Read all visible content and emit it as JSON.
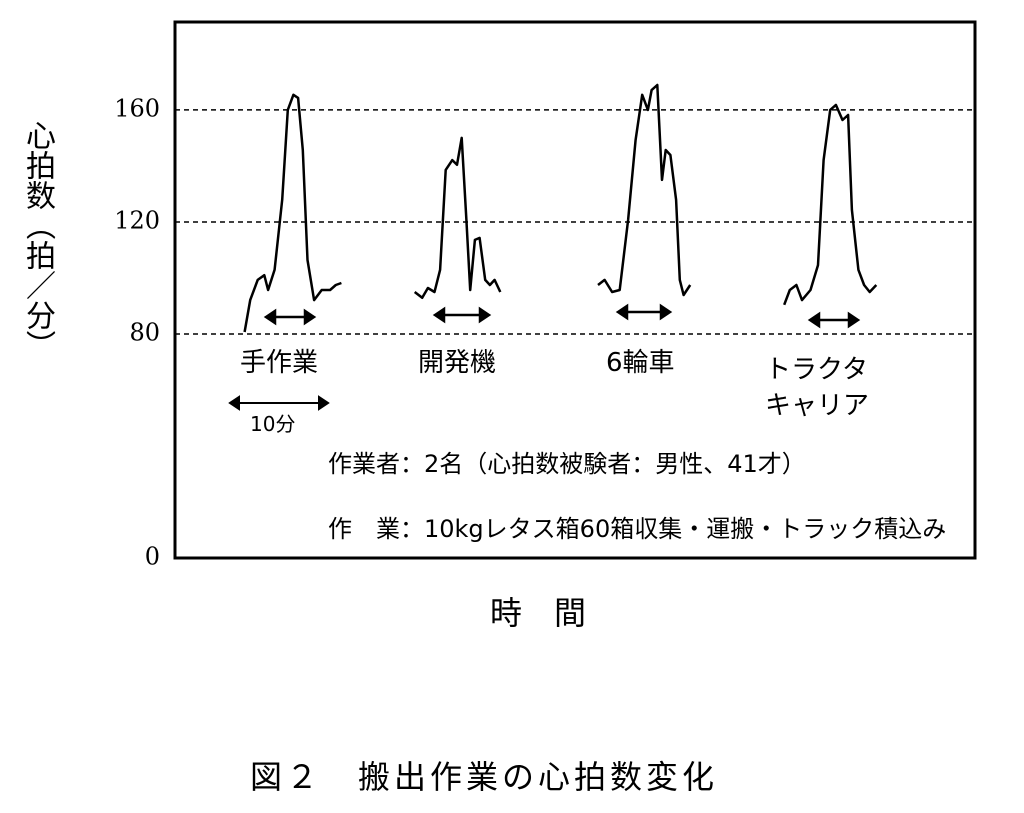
{
  "chart_data": {
    "type": "line",
    "caption": "図２　搬出作業の心拍数変化",
    "y_label": "心拍数（拍／分）",
    "x_label": "時　間",
    "ylim": [
      0,
      191.4
    ],
    "yticks": [
      0,
      80,
      120,
      160
    ],
    "xlim": [
      0,
      85.1
    ],
    "grid": true,
    "scale_bar_label": "10分",
    "annotations": [
      "作業者：2名（心拍数被験者：男性、41才）",
      "作　業：10kgレタス箱60箱収集・運搬・トラック積込み"
    ],
    "series": [
      {
        "name": "手作業",
        "color": "#000000",
        "x": [
          7.4,
          8.0,
          8.8,
          9.5,
          9.9,
          10.6,
          11.4,
          12.0,
          12.6,
          13.1,
          13.6,
          14.1,
          14.8,
          15.6,
          16.5,
          17.1,
          17.7
        ],
        "values": [
          80.7,
          92.1,
          99.3,
          101,
          95.7,
          102.9,
          127.9,
          160,
          165.4,
          164.3,
          145.7,
          106.4,
          92.1,
          95.7,
          95.7,
          97.5,
          98.2
        ]
      },
      {
        "name": "開発機",
        "color": "#000000",
        "x": [
          25.5,
          26.3,
          26.9,
          27.6,
          28.2,
          28.8,
          29.5,
          30.0,
          30.5,
          31.0,
          31.4,
          31.9,
          32.4,
          33.0,
          33.5,
          34.0,
          34.6
        ],
        "values": [
          95,
          92.9,
          96.4,
          95,
          102.9,
          138.6,
          142.1,
          140.4,
          150,
          120.7,
          95.7,
          113.6,
          114.3,
          99.3,
          97.5,
          99.3,
          95
        ]
      },
      {
        "name": "6輪車",
        "color": "#000000",
        "x": [
          45.0,
          45.7,
          46.5,
          47.3,
          48.2,
          49.0,
          49.7,
          50.3,
          50.7,
          51.3,
          51.8,
          52.2,
          52.7,
          53.3,
          53.7,
          54.1,
          54.8
        ],
        "values": [
          97.5,
          99.3,
          95,
          95.7,
          120.7,
          149.3,
          165.4,
          160,
          167.1,
          168.9,
          135,
          145.7,
          143.9,
          127.9,
          99.3,
          93.9,
          97.5
        ]
      },
      {
        "name": "トラクタ\nキャリア",
        "color": "#000000",
        "x": [
          64.8,
          65.4,
          66.1,
          66.7,
          67.6,
          68.4,
          69.0,
          69.7,
          70.3,
          71.0,
          71.6,
          72.0,
          72.7,
          73.3,
          73.9,
          74.6
        ],
        "values": [
          90.4,
          95.7,
          97.5,
          92.1,
          95.7,
          104.6,
          142.1,
          160,
          161.8,
          156.4,
          158.2,
          124.3,
          102.9,
          97.5,
          95,
          97.5
        ]
      }
    ]
  }
}
